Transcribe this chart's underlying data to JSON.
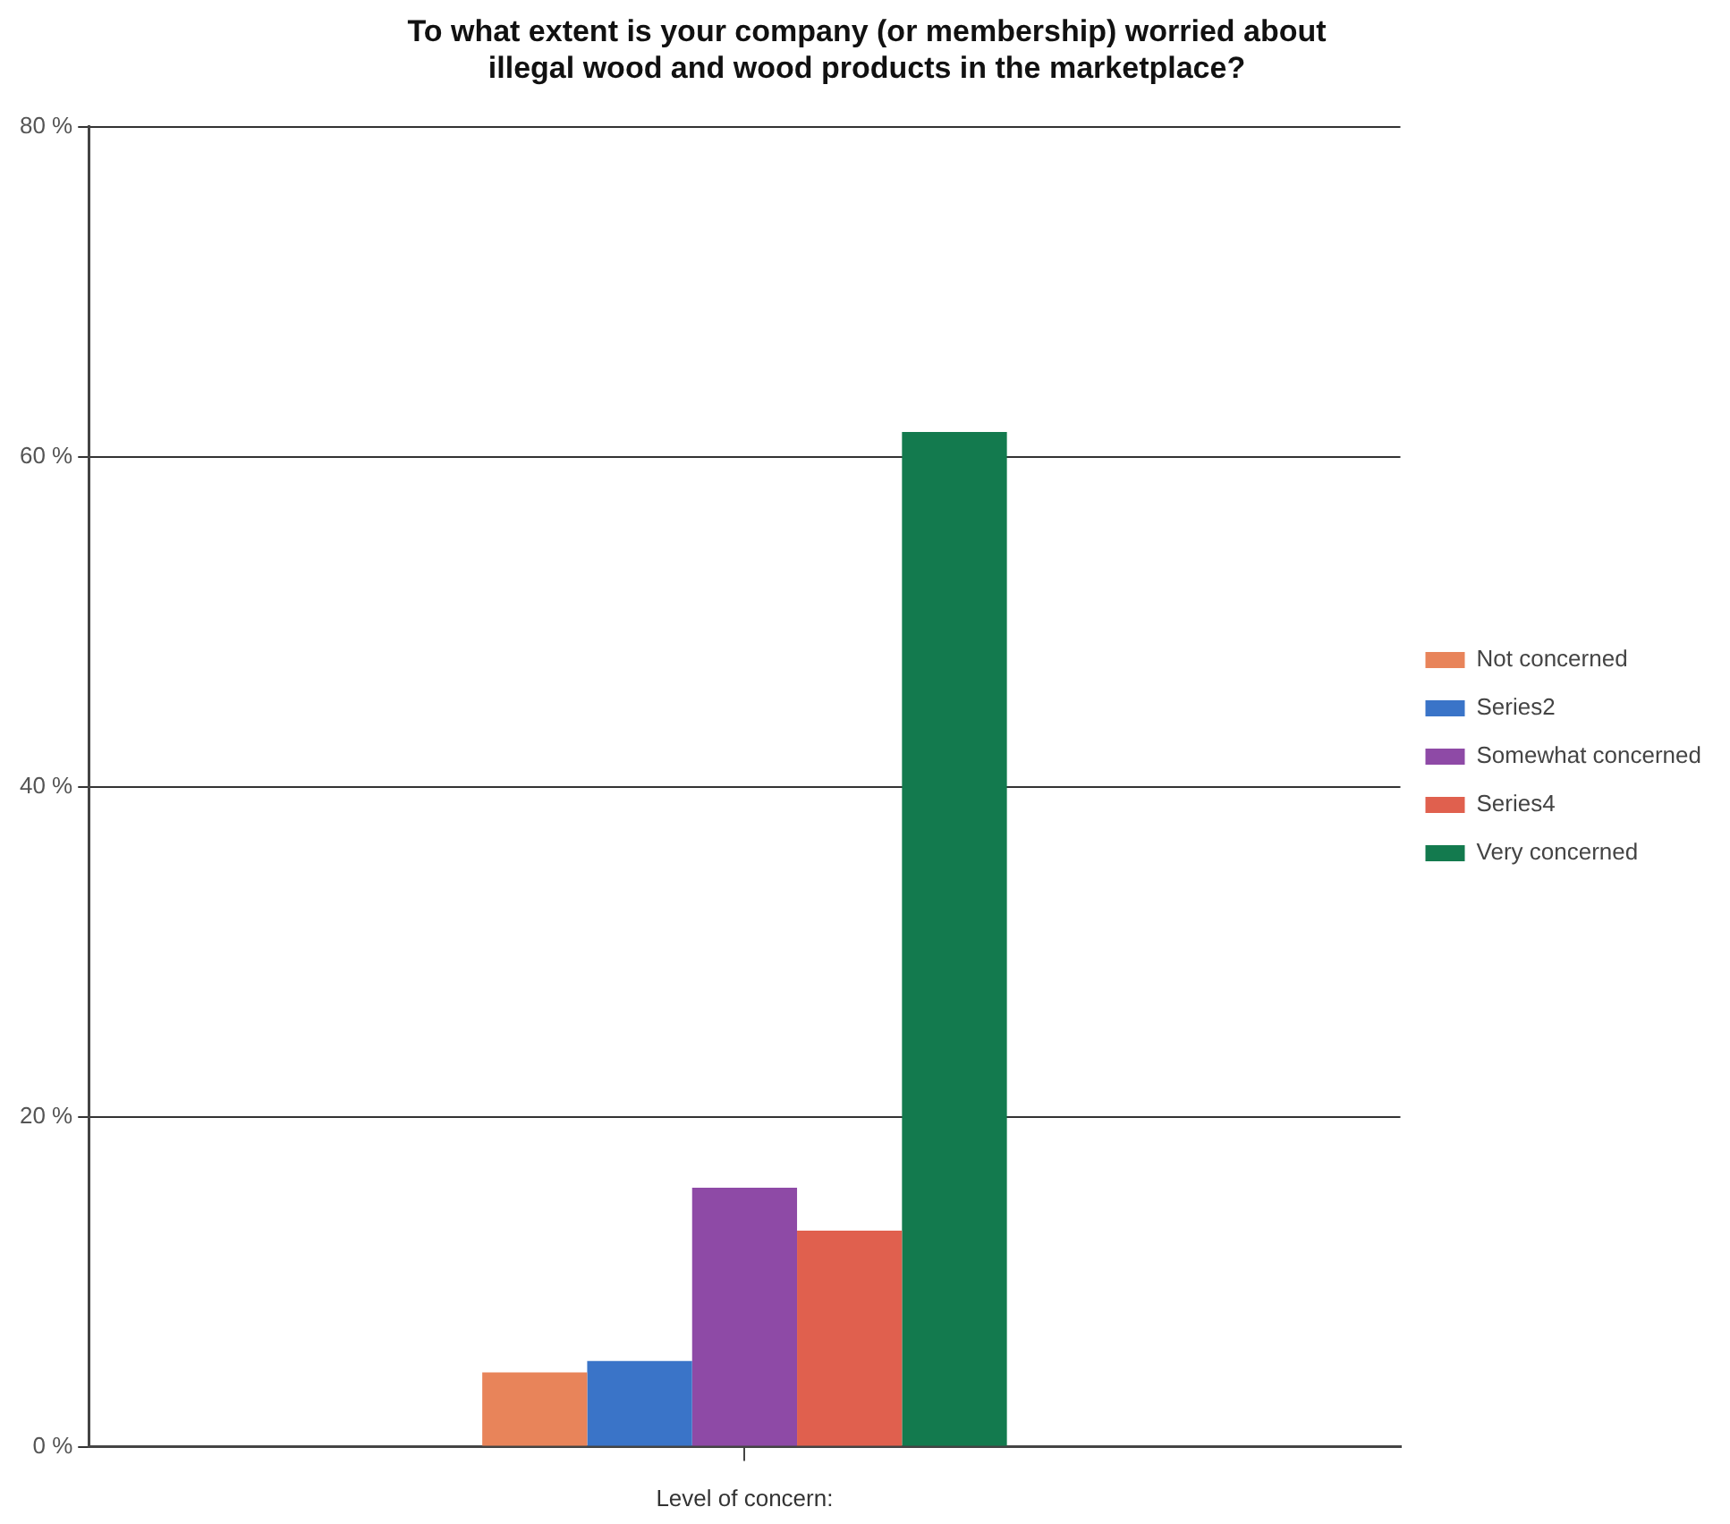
{
  "chart_data": {
    "type": "bar",
    "title": [
      "To what extent is your company (or membership) worried about",
      "illegal wood and wood products in the marketplace?"
    ],
    "xlabel": "Level of concern:",
    "categories": [
      null
    ],
    "series": [
      {
        "name": "Not concerned",
        "color": "#e8845a",
        "values": [
          4.5
        ]
      },
      {
        "name": "Series2",
        "color": "#3a74c8",
        "values": [
          5.2
        ]
      },
      {
        "name": "Somewhat concerned",
        "color": "#8e4aa6",
        "values": [
          15.7
        ]
      },
      {
        "name": "Series4",
        "color": "#e0604e",
        "values": [
          13.1
        ]
      },
      {
        "name": "Very concerned",
        "color": "#137a4e",
        "values": [
          61.5
        ]
      }
    ],
    "ylim": [
      0,
      80
    ],
    "yticks": [
      {
        "value": 0,
        "label": "0 %"
      },
      {
        "value": 20,
        "label": "20 %"
      },
      {
        "value": 40,
        "label": "40 %"
      },
      {
        "value": 60,
        "label": "60 %"
      },
      {
        "value": 80,
        "label": "80 %"
      }
    ],
    "grid": "y",
    "legend": "right"
  }
}
